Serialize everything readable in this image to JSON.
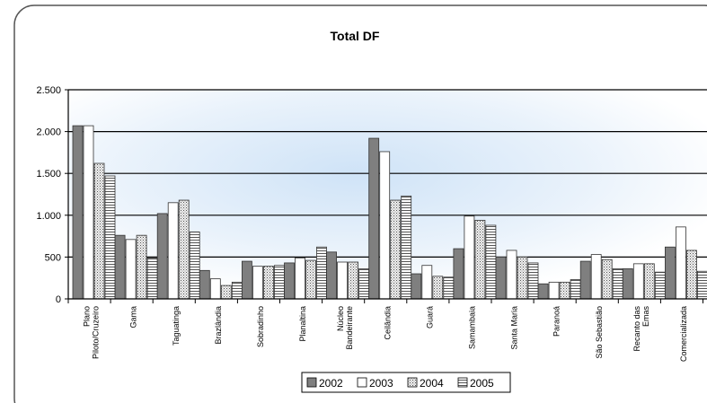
{
  "chart_data": {
    "type": "bar",
    "title": "Total DF",
    "xlabel": "",
    "ylabel": "",
    "ylim": [
      0,
      2500
    ],
    "yticks": [
      0,
      500,
      1000,
      1500,
      2000,
      2500
    ],
    "ytick_labels": [
      "0",
      "500",
      "1.000",
      "1.500",
      "2.000",
      "2.500"
    ],
    "grid": true,
    "legend_position": "bottom",
    "categories": [
      "Plano Piloto/Cruzeiro",
      "Gama",
      "Taguatinga",
      "Brazlândia",
      "Sobradinho",
      "Planaltina",
      "Núcleo Bandeirante",
      "Ceilândia",
      "Guará",
      "Samambaia",
      "Santa Maria",
      "Paranoá",
      "São Sebastião",
      "Recanto das Emas",
      "Comercializada"
    ],
    "category_display": [
      [
        "Plano",
        "Piloto/Cruzeiro"
      ],
      [
        "Gama"
      ],
      [
        "Taguatinga"
      ],
      [
        "Brazlândia"
      ],
      [
        "Sobradinho"
      ],
      [
        "Planaltina"
      ],
      [
        "Núcleo",
        "Bandeirante"
      ],
      [
        "Ceilândia"
      ],
      [
        "Guará"
      ],
      [
        "Samambaia"
      ],
      [
        "Santa Maria"
      ],
      [
        "Paranoá"
      ],
      [
        "São Sebastião"
      ],
      [
        "Recanto das",
        "Emas"
      ],
      [
        "Comercializada"
      ]
    ],
    "series": [
      {
        "name": "2002",
        "color": "#7f7f7f",
        "pattern": "solid",
        "values": [
          2070,
          760,
          1020,
          340,
          450,
          430,
          560,
          1920,
          300,
          600,
          500,
          180,
          450,
          360,
          620
        ]
      },
      {
        "name": "2003",
        "color": "#ffffff",
        "pattern": "white",
        "values": [
          2070,
          710,
          1150,
          240,
          390,
          490,
          440,
          1760,
          400,
          990,
          580,
          200,
          530,
          420,
          860
        ]
      },
      {
        "name": "2004",
        "color": "#e8e8e8",
        "pattern": "dots",
        "values": [
          1620,
          760,
          1180,
          160,
          390,
          460,
          440,
          1180,
          270,
          940,
          500,
          200,
          470,
          420,
          580
        ]
      },
      {
        "name": "2005",
        "color": "#ffffff",
        "pattern": "hlines",
        "values": [
          1470,
          490,
          800,
          200,
          400,
          620,
          360,
          1230,
          260,
          880,
          430,
          230,
          360,
          320,
          330
        ]
      }
    ]
  }
}
